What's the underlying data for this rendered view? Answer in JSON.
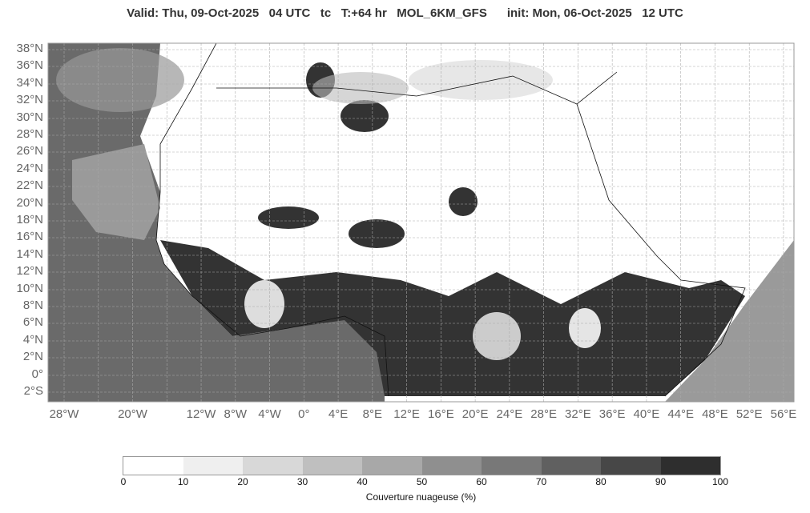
{
  "title": "Valid: Thu, 09-Oct-2025   04 UTC   tc   T:+64 hr   MOL_6KM_GFS      init: Mon, 06-Oct-2025   12 UTC",
  "lat_labels": [
    "38°N",
    "36°N",
    "34°N",
    "32°N",
    "30°N",
    "28°N",
    "26°N",
    "24°N",
    "22°N",
    "20°N",
    "18°N",
    "16°N",
    "14°N",
    "12°N",
    "10°N",
    "8°N",
    "6°N",
    "4°N",
    "2°N",
    "0°",
    "2°S"
  ],
  "lon_labels": [
    "28°W",
    "20°W",
    "12°W",
    "8°W",
    "4°W",
    "0°",
    "4°E",
    "8°E",
    "12°E",
    "16°E",
    "20°E",
    "24°E",
    "28°E",
    "32°E",
    "36°E",
    "40°E",
    "44°E",
    "48°E",
    "52°E",
    "56°E"
  ],
  "colorbar": {
    "label": "Couverture nuageuse (%)",
    "ticks": [
      "0",
      "10",
      "20",
      "30",
      "40",
      "50",
      "60",
      "70",
      "80",
      "90",
      "100"
    ],
    "colors": [
      "#ffffff",
      "#efefef",
      "#d8d8d8",
      "#bfbfbf",
      "#a8a8a8",
      "#8f8f8f",
      "#787878",
      "#606060",
      "#474747",
      "#2e2e2e"
    ]
  }
}
